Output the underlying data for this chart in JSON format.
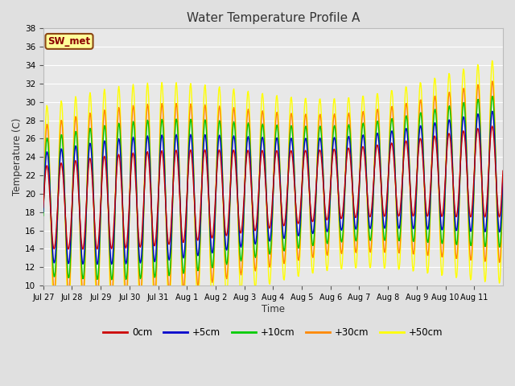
{
  "title": "Water Temperature Profile A",
  "xlabel": "Time",
  "ylabel": "Temperature (C)",
  "annotation": "SW_met",
  "ylim": [
    10,
    38
  ],
  "yticks": [
    10,
    12,
    14,
    16,
    18,
    20,
    22,
    24,
    26,
    28,
    30,
    32,
    34,
    36,
    38
  ],
  "xtick_labels": [
    "Jul 27",
    "Jul 28",
    "Jul 29",
    "Jul 30",
    "Jul 31",
    "Aug 1",
    "Aug 2",
    "Aug 3",
    "Aug 4",
    "Aug 5",
    "Aug 6",
    "Aug 7",
    "Aug 8",
    "Aug 9",
    "Aug 10",
    "Aug 11"
  ],
  "legend_labels": [
    "0cm",
    "+5cm",
    "+10cm",
    "+30cm",
    "+50cm"
  ],
  "legend_colors": [
    "#cc0000",
    "#0000cc",
    "#00cc00",
    "#ff8800",
    "#ffff00"
  ],
  "background_color": "#e0e0e0",
  "plot_bg_color": "#e8e8e8",
  "grid_color": "#ffffff",
  "n_days": 16
}
